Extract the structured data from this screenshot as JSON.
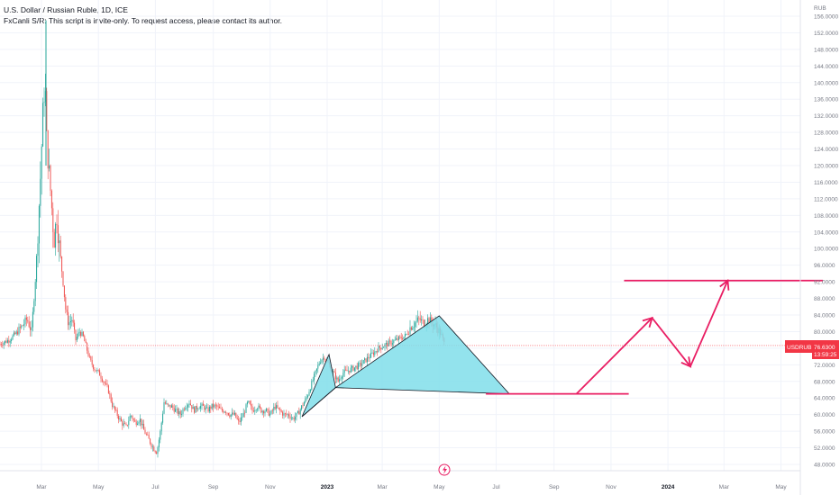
{
  "header": {
    "title": "U.S. Dollar / Russian Ruble, 1D, ICE",
    "script_note": "FxCanli S/R: This script is invite-only. To request access, please contact its author."
  },
  "price_axis": {
    "unit": "RUB",
    "ticks": [
      "156.0000",
      "152.0000",
      "148.0000",
      "144.0000",
      "140.0000",
      "136.0000",
      "132.0000",
      "128.0000",
      "124.0000",
      "120.0000",
      "116.0000",
      "112.0000",
      "108.0000",
      "104.0000",
      "100.0000",
      "96.0000",
      "92.0000",
      "88.0000",
      "84.0000",
      "80.0000",
      "76.0000",
      "72.0000",
      "68.0000",
      "64.0000",
      "60.0000",
      "56.0000",
      "52.0000",
      "48.0000"
    ]
  },
  "time_axis": {
    "ticks": [
      "Mar",
      "May",
      "Jul",
      "Sep",
      "Nov",
      "2023",
      "Mar",
      "May",
      "Jul",
      "Sep",
      "Nov",
      "2024",
      "Mar",
      "May"
    ]
  },
  "last_price": {
    "symbol": "USDRUB",
    "value": "76.6300",
    "countdown": "13:59:25",
    "color": "#f23645"
  },
  "colors": {
    "up": "#26a69a",
    "down": "#ef5350",
    "pattern_fill": "#80deea",
    "projection": "#e91e63",
    "grid": "#f0f3fa"
  },
  "chart_data": {
    "type": "candlestick",
    "ylim": [
      46,
      157
    ],
    "price_path": [
      [
        0,
        77
      ],
      [
        10,
        78
      ],
      [
        20,
        80
      ],
      [
        30,
        83
      ],
      [
        35,
        80
      ],
      [
        40,
        95
      ],
      [
        45,
        118
      ],
      [
        48,
        135
      ],
      [
        50,
        140
      ],
      [
        52,
        125
      ],
      [
        55,
        117
      ],
      [
        60,
        102
      ],
      [
        63,
        108
      ],
      [
        66,
        100
      ],
      [
        70,
        92
      ],
      [
        73,
        85
      ],
      [
        76,
        82
      ],
      [
        80,
        83
      ],
      [
        84,
        78
      ],
      [
        88,
        80
      ],
      [
        92,
        79
      ],
      [
        96,
        76
      ],
      [
        100,
        73
      ],
      [
        105,
        71
      ],
      [
        110,
        70
      ],
      [
        115,
        68
      ],
      [
        120,
        66
      ],
      [
        125,
        62
      ],
      [
        130,
        60
      ],
      [
        135,
        58
      ],
      [
        140,
        57
      ],
      [
        145,
        60
      ],
      [
        150,
        58
      ],
      [
        155,
        59
      ],
      [
        160,
        56
      ],
      [
        165,
        54
      ],
      [
        170,
        52
      ],
      [
        174,
        51
      ],
      [
        178,
        56
      ],
      [
        182,
        63
      ],
      [
        186,
        62
      ],
      [
        190,
        62
      ],
      [
        195,
        61
      ],
      [
        200,
        60
      ],
      [
        205,
        62
      ],
      [
        210,
        63
      ],
      [
        215,
        61
      ],
      [
        220,
        62
      ],
      [
        225,
        62
      ],
      [
        230,
        61
      ],
      [
        235,
        62
      ],
      [
        240,
        62
      ],
      [
        245,
        61
      ],
      [
        250,
        61
      ],
      [
        255,
        60
      ],
      [
        260,
        60
      ],
      [
        265,
        58
      ],
      [
        270,
        60
      ],
      [
        275,
        63
      ],
      [
        280,
        61
      ],
      [
        285,
        62
      ],
      [
        290,
        61
      ],
      [
        295,
        61
      ],
      [
        300,
        60
      ],
      [
        305,
        62
      ],
      [
        310,
        61
      ],
      [
        315,
        60
      ],
      [
        320,
        60
      ],
      [
        325,
        59
      ],
      [
        330,
        60
      ],
      [
        335,
        62
      ],
      [
        340,
        64
      ],
      [
        345,
        67
      ],
      [
        350,
        70
      ],
      [
        355,
        73
      ],
      [
        360,
        74
      ],
      [
        365,
        72
      ],
      [
        370,
        70
      ],
      [
        375,
        68
      ],
      [
        380,
        70
      ],
      [
        390,
        71
      ],
      [
        400,
        72
      ],
      [
        410,
        74
      ],
      [
        420,
        76
      ],
      [
        430,
        77
      ],
      [
        440,
        78
      ],
      [
        450,
        79
      ],
      [
        455,
        81
      ],
      [
        460,
        82
      ],
      [
        465,
        83
      ],
      [
        470,
        82
      ],
      [
        475,
        83
      ],
      [
        480,
        82
      ],
      [
        485,
        81
      ],
      [
        490,
        79
      ],
      [
        493,
        77
      ]
    ],
    "pattern": {
      "points": [
        {
          "date": "2022-12-05",
          "price": 59.5
        },
        {
          "date": "2023-01-03",
          "price": 74.5
        },
        {
          "date": "2023-01-10",
          "price": 66.5
        },
        {
          "date": "2023-05-01",
          "price": 83.8
        },
        {
          "date": "2023-07-15",
          "price": 65.0
        }
      ]
    },
    "levels": [
      {
        "price": 65.0,
        "from": "2023-06-20",
        "to": "2023-11-20"
      },
      {
        "price": 92.3,
        "from": "2023-11-15",
        "to": "2024-06-15"
      }
    ],
    "projection": [
      {
        "date": "2023-09-25",
        "price": 65.0
      },
      {
        "date": "2023-12-15",
        "price": 83.3
      },
      {
        "date": "2024-01-25",
        "price": 71.6
      },
      {
        "date": "2024-03-05",
        "price": 92.3
      }
    ]
  }
}
